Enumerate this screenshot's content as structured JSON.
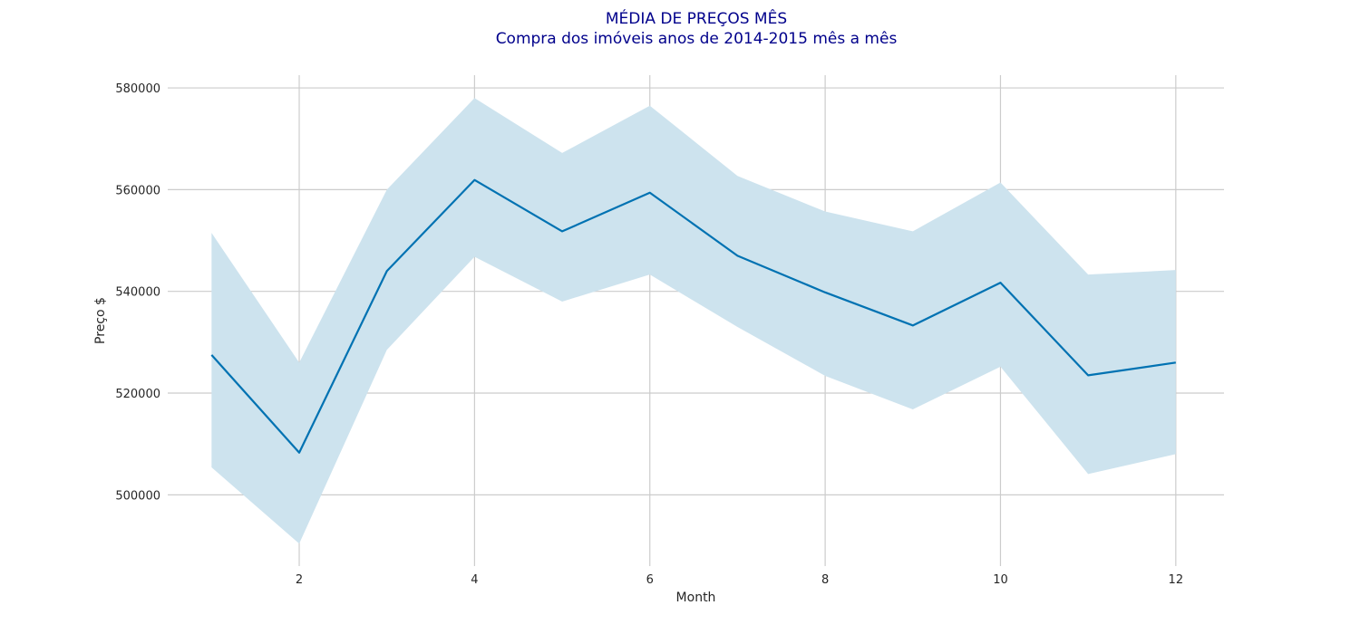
{
  "chart_data": {
    "type": "line",
    "title": "MÉDIA DE PREÇOS MÊS",
    "subtitle": "Compra dos imóveis anos de 2014-2015 mês a mês",
    "xlabel": "Month",
    "ylabel": "Preço $",
    "x": [
      1,
      2,
      3,
      4,
      5,
      6,
      7,
      8,
      9,
      10,
      11,
      12
    ],
    "series": [
      {
        "values": [
          527500,
          508300,
          544000,
          561900,
          551800,
          559400,
          547000,
          539800,
          533300,
          541700,
          523500,
          526000
        ],
        "ci_upper": [
          551500,
          526000,
          560000,
          578000,
          567200,
          576500,
          562700,
          555700,
          551800,
          561400,
          543300,
          544200
        ],
        "ci_lower": [
          505400,
          490400,
          528500,
          546800,
          538000,
          543300,
          533000,
          523400,
          516800,
          525200,
          504100,
          508000
        ]
      }
    ],
    "xlim": [
      0.5,
      12.55
    ],
    "ylim": [
      486000,
      582500
    ],
    "xticks": [
      2,
      4,
      6,
      8,
      10,
      12
    ],
    "yticks": [
      500000,
      520000,
      540000,
      560000,
      580000
    ],
    "grid": true,
    "line_color": "#0072b2",
    "band_color": "#cde3ee",
    "grid_color": "#cccccc",
    "title_color": "#00008b"
  }
}
